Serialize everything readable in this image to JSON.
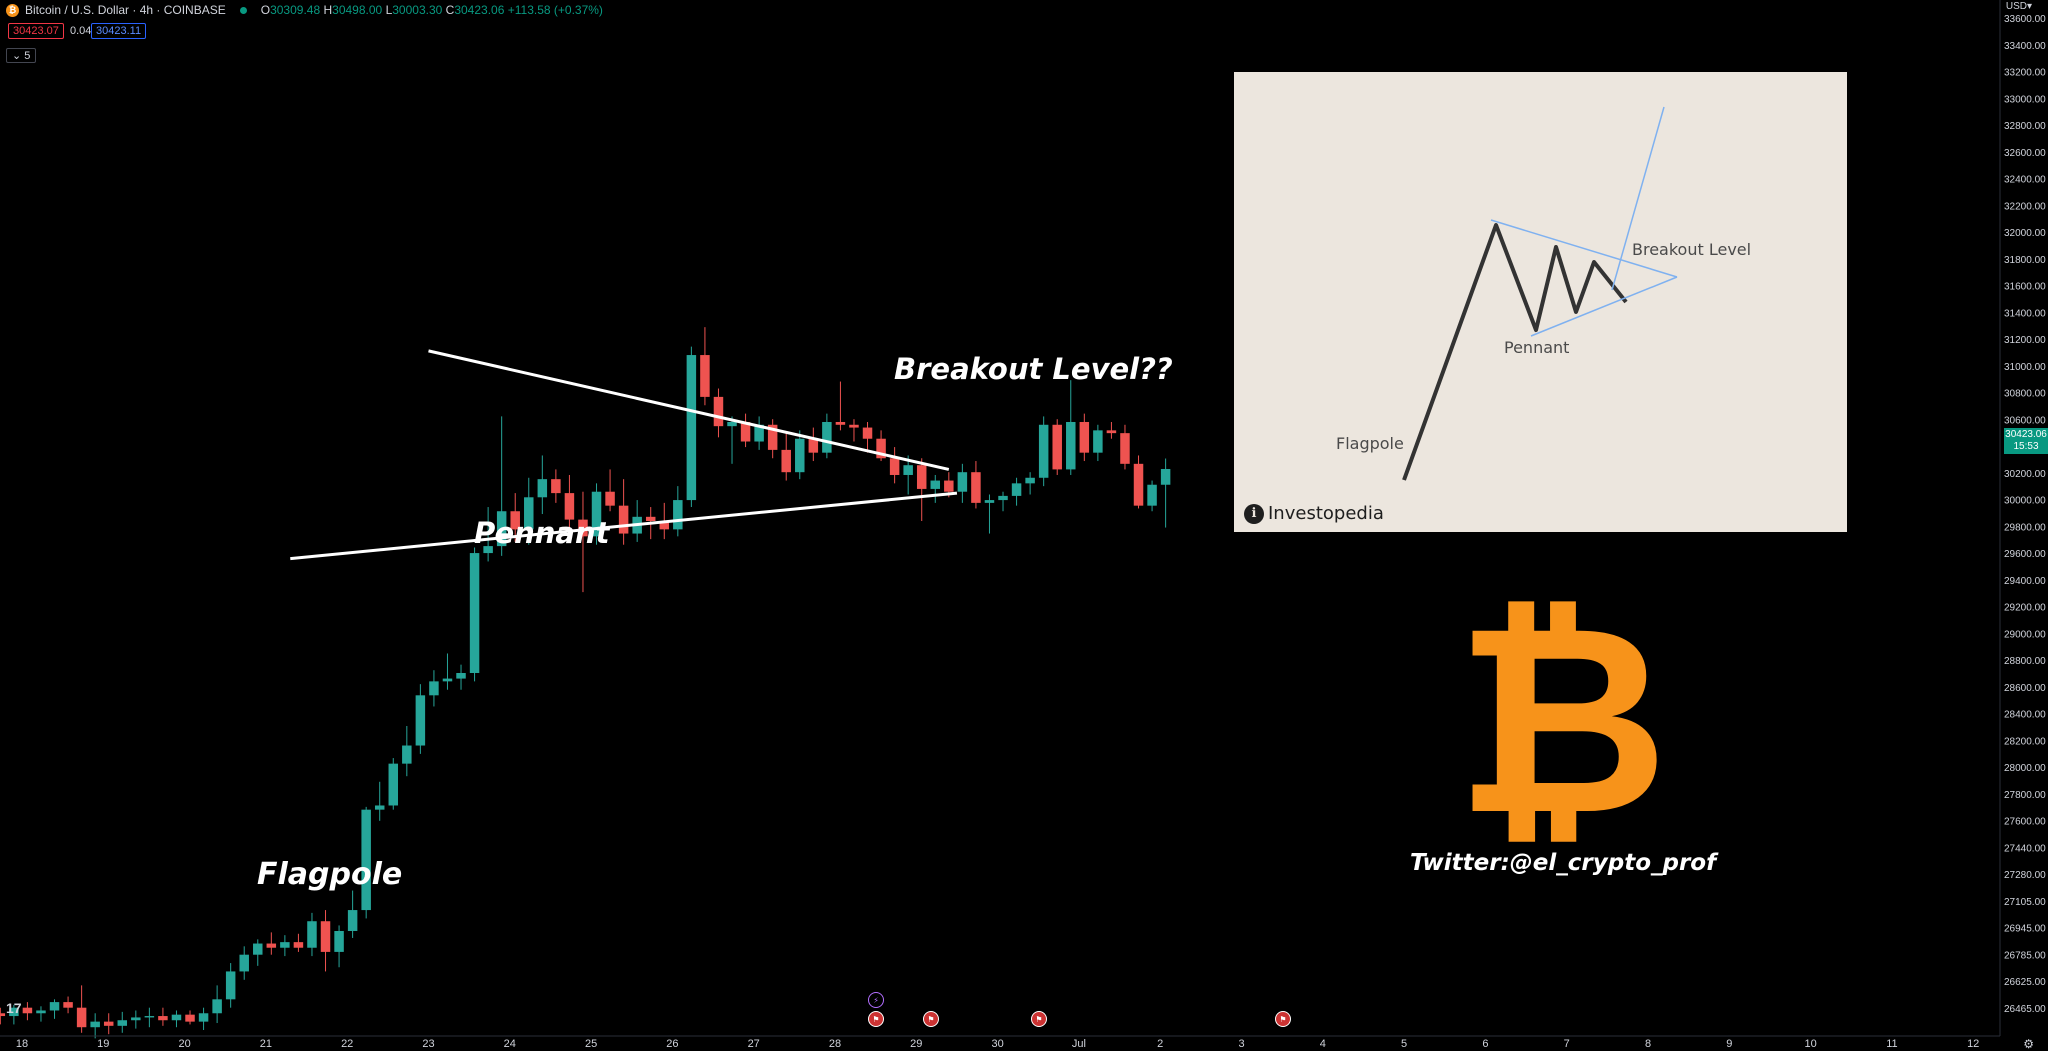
{
  "header": {
    "symbol_icon": "bitcoin-icon",
    "symbol_title": "Bitcoin / U.S. Dollar · 4h · COINBASE",
    "ohlc": {
      "open_label": "O",
      "open": "30309.48",
      "high_label": "H",
      "high": "30498.00",
      "low_label": "L",
      "low": "30003.30",
      "close_label": "C",
      "close": "30423.06",
      "change": "+113.58 (+0.37%)"
    },
    "sell_price": "30423.07",
    "spread": "0.04",
    "buy_price": "30423.11",
    "indicators_toggle": "5"
  },
  "price_axis": {
    "currency": "USD",
    "labels": [
      "33600.00",
      "33400.00",
      "33200.00",
      "33000.00",
      "32800.00",
      "32600.00",
      "32400.00",
      "32200.00",
      "32000.00",
      "31800.00",
      "31600.00",
      "31400.00",
      "31200.00",
      "31000.00",
      "30800.00",
      "30600.00",
      "30400.00",
      "30200.00",
      "30000.00",
      "29800.00",
      "29600.00",
      "29400.00",
      "29200.00",
      "29000.00",
      "28800.00",
      "28600.00",
      "28400.00",
      "28200.00",
      "28000.00",
      "27800.00",
      "27600.00",
      "27440.00",
      "27280.00",
      "27105.00",
      "26945.00",
      "26785.00",
      "26625.00",
      "26465.00"
    ],
    "current_price": "30423.06",
    "countdown": "15:53"
  },
  "time_axis": {
    "labels": [
      "18",
      "19",
      "20",
      "21",
      "22",
      "23",
      "24",
      "25",
      "26",
      "27",
      "28",
      "29",
      "30",
      "Jul",
      "2",
      "3",
      "4",
      "5",
      "6",
      "7",
      "8",
      "9",
      "10",
      "11",
      "12"
    ]
  },
  "annotations": {
    "breakout": "Breakout Level??",
    "pennant": "Pennant",
    "flagpole": "Flagpole",
    "twitter": "Twitter:@el_crypto_prof"
  },
  "inset": {
    "breakout": "Breakout Level",
    "pennant": "Pennant",
    "flagpole": "Flagpole",
    "brand": "Investopedia"
  },
  "colors": {
    "up": "#26a69a",
    "down": "#ef5350",
    "bitcoin": "#f7931a",
    "inset_bg": "#ece6de",
    "inset_line": "#7fb1f0"
  },
  "chart_data": {
    "type": "candlestick",
    "interval": "4h",
    "x_range": [
      "18",
      "12"
    ],
    "ylim": [
      26400,
      33700
    ],
    "candles": [
      {
        "o": 26520,
        "h": 26560,
        "l": 26440,
        "c": 26500
      },
      {
        "o": 26500,
        "h": 26580,
        "l": 26440,
        "c": 26560
      },
      {
        "o": 26560,
        "h": 26600,
        "l": 26470,
        "c": 26520
      },
      {
        "o": 26520,
        "h": 26570,
        "l": 26460,
        "c": 26540
      },
      {
        "o": 26540,
        "h": 26620,
        "l": 26480,
        "c": 26600
      },
      {
        "o": 26600,
        "h": 26640,
        "l": 26520,
        "c": 26560
      },
      {
        "o": 26560,
        "h": 26720,
        "l": 26380,
        "c": 26420
      },
      {
        "o": 26420,
        "h": 26520,
        "l": 26340,
        "c": 26460
      },
      {
        "o": 26460,
        "h": 26520,
        "l": 26370,
        "c": 26430
      },
      {
        "o": 26430,
        "h": 26530,
        "l": 26380,
        "c": 26470
      },
      {
        "o": 26470,
        "h": 26540,
        "l": 26410,
        "c": 26490
      },
      {
        "o": 26490,
        "h": 26560,
        "l": 26420,
        "c": 26500
      },
      {
        "o": 26500,
        "h": 26560,
        "l": 26430,
        "c": 26470
      },
      {
        "o": 26470,
        "h": 26540,
        "l": 26420,
        "c": 26510
      },
      {
        "o": 26510,
        "h": 26540,
        "l": 26440,
        "c": 26460
      },
      {
        "o": 26460,
        "h": 26560,
        "l": 26400,
        "c": 26520
      },
      {
        "o": 26520,
        "h": 26720,
        "l": 26450,
        "c": 26620
      },
      {
        "o": 26620,
        "h": 26880,
        "l": 26560,
        "c": 26820
      },
      {
        "o": 26820,
        "h": 27000,
        "l": 26760,
        "c": 26940
      },
      {
        "o": 26940,
        "h": 27050,
        "l": 26860,
        "c": 27020
      },
      {
        "o": 27020,
        "h": 27100,
        "l": 26940,
        "c": 26990
      },
      {
        "o": 26990,
        "h": 27080,
        "l": 26930,
        "c": 27030
      },
      {
        "o": 27030,
        "h": 27090,
        "l": 26960,
        "c": 26990
      },
      {
        "o": 26990,
        "h": 27240,
        "l": 26930,
        "c": 27180
      },
      {
        "o": 27180,
        "h": 27260,
        "l": 26820,
        "c": 26960
      },
      {
        "o": 26960,
        "h": 27150,
        "l": 26850,
        "c": 27110
      },
      {
        "o": 27110,
        "h": 27400,
        "l": 27060,
        "c": 27260
      },
      {
        "o": 27260,
        "h": 28000,
        "l": 27200,
        "c": 27980
      },
      {
        "o": 27980,
        "h": 28180,
        "l": 27900,
        "c": 28010
      },
      {
        "o": 28010,
        "h": 28350,
        "l": 27980,
        "c": 28310
      },
      {
        "o": 28310,
        "h": 28580,
        "l": 28220,
        "c": 28440
      },
      {
        "o": 28440,
        "h": 28880,
        "l": 28380,
        "c": 28800
      },
      {
        "o": 28800,
        "h": 28980,
        "l": 28720,
        "c": 28900
      },
      {
        "o": 28900,
        "h": 29100,
        "l": 28840,
        "c": 28920
      },
      {
        "o": 28920,
        "h": 29020,
        "l": 28840,
        "c": 28960
      },
      {
        "o": 28960,
        "h": 29860,
        "l": 28900,
        "c": 29820
      },
      {
        "o": 29820,
        "h": 30150,
        "l": 29760,
        "c": 29870
      },
      {
        "o": 29870,
        "h": 30800,
        "l": 29800,
        "c": 30120
      },
      {
        "o": 30120,
        "h": 30250,
        "l": 29900,
        "c": 29990
      },
      {
        "o": 29990,
        "h": 30360,
        "l": 29880,
        "c": 30220
      },
      {
        "o": 30220,
        "h": 30520,
        "l": 30100,
        "c": 30350
      },
      {
        "o": 30350,
        "h": 30420,
        "l": 30180,
        "c": 30250
      },
      {
        "o": 30250,
        "h": 30380,
        "l": 30000,
        "c": 30060
      },
      {
        "o": 30060,
        "h": 30260,
        "l": 29540,
        "c": 29940
      },
      {
        "o": 29940,
        "h": 30320,
        "l": 29880,
        "c": 30260
      },
      {
        "o": 30260,
        "h": 30420,
        "l": 30120,
        "c": 30160
      },
      {
        "o": 30160,
        "h": 30350,
        "l": 29880,
        "c": 29960
      },
      {
        "o": 29960,
        "h": 30200,
        "l": 29900,
        "c": 30080
      },
      {
        "o": 30080,
        "h": 30150,
        "l": 29920,
        "c": 30050
      },
      {
        "o": 30050,
        "h": 30180,
        "l": 29920,
        "c": 29990
      },
      {
        "o": 29990,
        "h": 30300,
        "l": 29940,
        "c": 30200
      },
      {
        "o": 30200,
        "h": 31300,
        "l": 30150,
        "c": 31240
      },
      {
        "o": 31240,
        "h": 31440,
        "l": 30880,
        "c": 30940
      },
      {
        "o": 30940,
        "h": 31000,
        "l": 30650,
        "c": 30730
      },
      {
        "o": 30730,
        "h": 30800,
        "l": 30460,
        "c": 30760
      },
      {
        "o": 30760,
        "h": 30820,
        "l": 30580,
        "c": 30620
      },
      {
        "o": 30620,
        "h": 30800,
        "l": 30560,
        "c": 30740
      },
      {
        "o": 30740,
        "h": 30780,
        "l": 30500,
        "c": 30560
      },
      {
        "o": 30560,
        "h": 30680,
        "l": 30340,
        "c": 30400
      },
      {
        "o": 30400,
        "h": 30700,
        "l": 30350,
        "c": 30640
      },
      {
        "o": 30640,
        "h": 30720,
        "l": 30480,
        "c": 30540
      },
      {
        "o": 30540,
        "h": 30820,
        "l": 30500,
        "c": 30760
      },
      {
        "o": 30760,
        "h": 31050,
        "l": 30700,
        "c": 30740
      },
      {
        "o": 30740,
        "h": 30780,
        "l": 30620,
        "c": 30720
      },
      {
        "o": 30720,
        "h": 30760,
        "l": 30540,
        "c": 30640
      },
      {
        "o": 30640,
        "h": 30700,
        "l": 30480,
        "c": 30500
      },
      {
        "o": 30500,
        "h": 30580,
        "l": 30320,
        "c": 30380
      },
      {
        "o": 30380,
        "h": 30520,
        "l": 30240,
        "c": 30450
      },
      {
        "o": 30450,
        "h": 30500,
        "l": 30050,
        "c": 30280
      },
      {
        "o": 30280,
        "h": 30380,
        "l": 30180,
        "c": 30340
      },
      {
        "o": 30340,
        "h": 30400,
        "l": 30220,
        "c": 30260
      },
      {
        "o": 30260,
        "h": 30460,
        "l": 30180,
        "c": 30400
      },
      {
        "o": 30400,
        "h": 30480,
        "l": 30140,
        "c": 30180
      },
      {
        "o": 30180,
        "h": 30240,
        "l": 29960,
        "c": 30200
      },
      {
        "o": 30200,
        "h": 30260,
        "l": 30120,
        "c": 30230
      },
      {
        "o": 30230,
        "h": 30360,
        "l": 30160,
        "c": 30320
      },
      {
        "o": 30320,
        "h": 30400,
        "l": 30240,
        "c": 30360
      },
      {
        "o": 30360,
        "h": 30800,
        "l": 30300,
        "c": 30740
      },
      {
        "o": 30740,
        "h": 30780,
        "l": 30380,
        "c": 30420
      },
      {
        "o": 30420,
        "h": 31060,
        "l": 30380,
        "c": 30760
      },
      {
        "o": 30760,
        "h": 30820,
        "l": 30480,
        "c": 30540
      },
      {
        "o": 30540,
        "h": 30740,
        "l": 30480,
        "c": 30700
      },
      {
        "o": 30700,
        "h": 30760,
        "l": 30640,
        "c": 30680
      },
      {
        "o": 30680,
        "h": 30740,
        "l": 30420,
        "c": 30460
      },
      {
        "o": 30460,
        "h": 30520,
        "l": 30140,
        "c": 30160
      },
      {
        "o": 30160,
        "h": 30340,
        "l": 30120,
        "c": 30310
      },
      {
        "o": 30310,
        "h": 30498,
        "l": 30003,
        "c": 30423
      }
    ],
    "trendlines": [
      {
        "name": "upper",
        "from": {
          "t": "23",
          "price": 31270
        },
        "to": {
          "t": "29.4",
          "price": 30420
        }
      },
      {
        "name": "lower",
        "from": {
          "t": "21.3",
          "price": 29780
        },
        "to": {
          "t": "29.5",
          "price": 30250
        }
      }
    ]
  }
}
